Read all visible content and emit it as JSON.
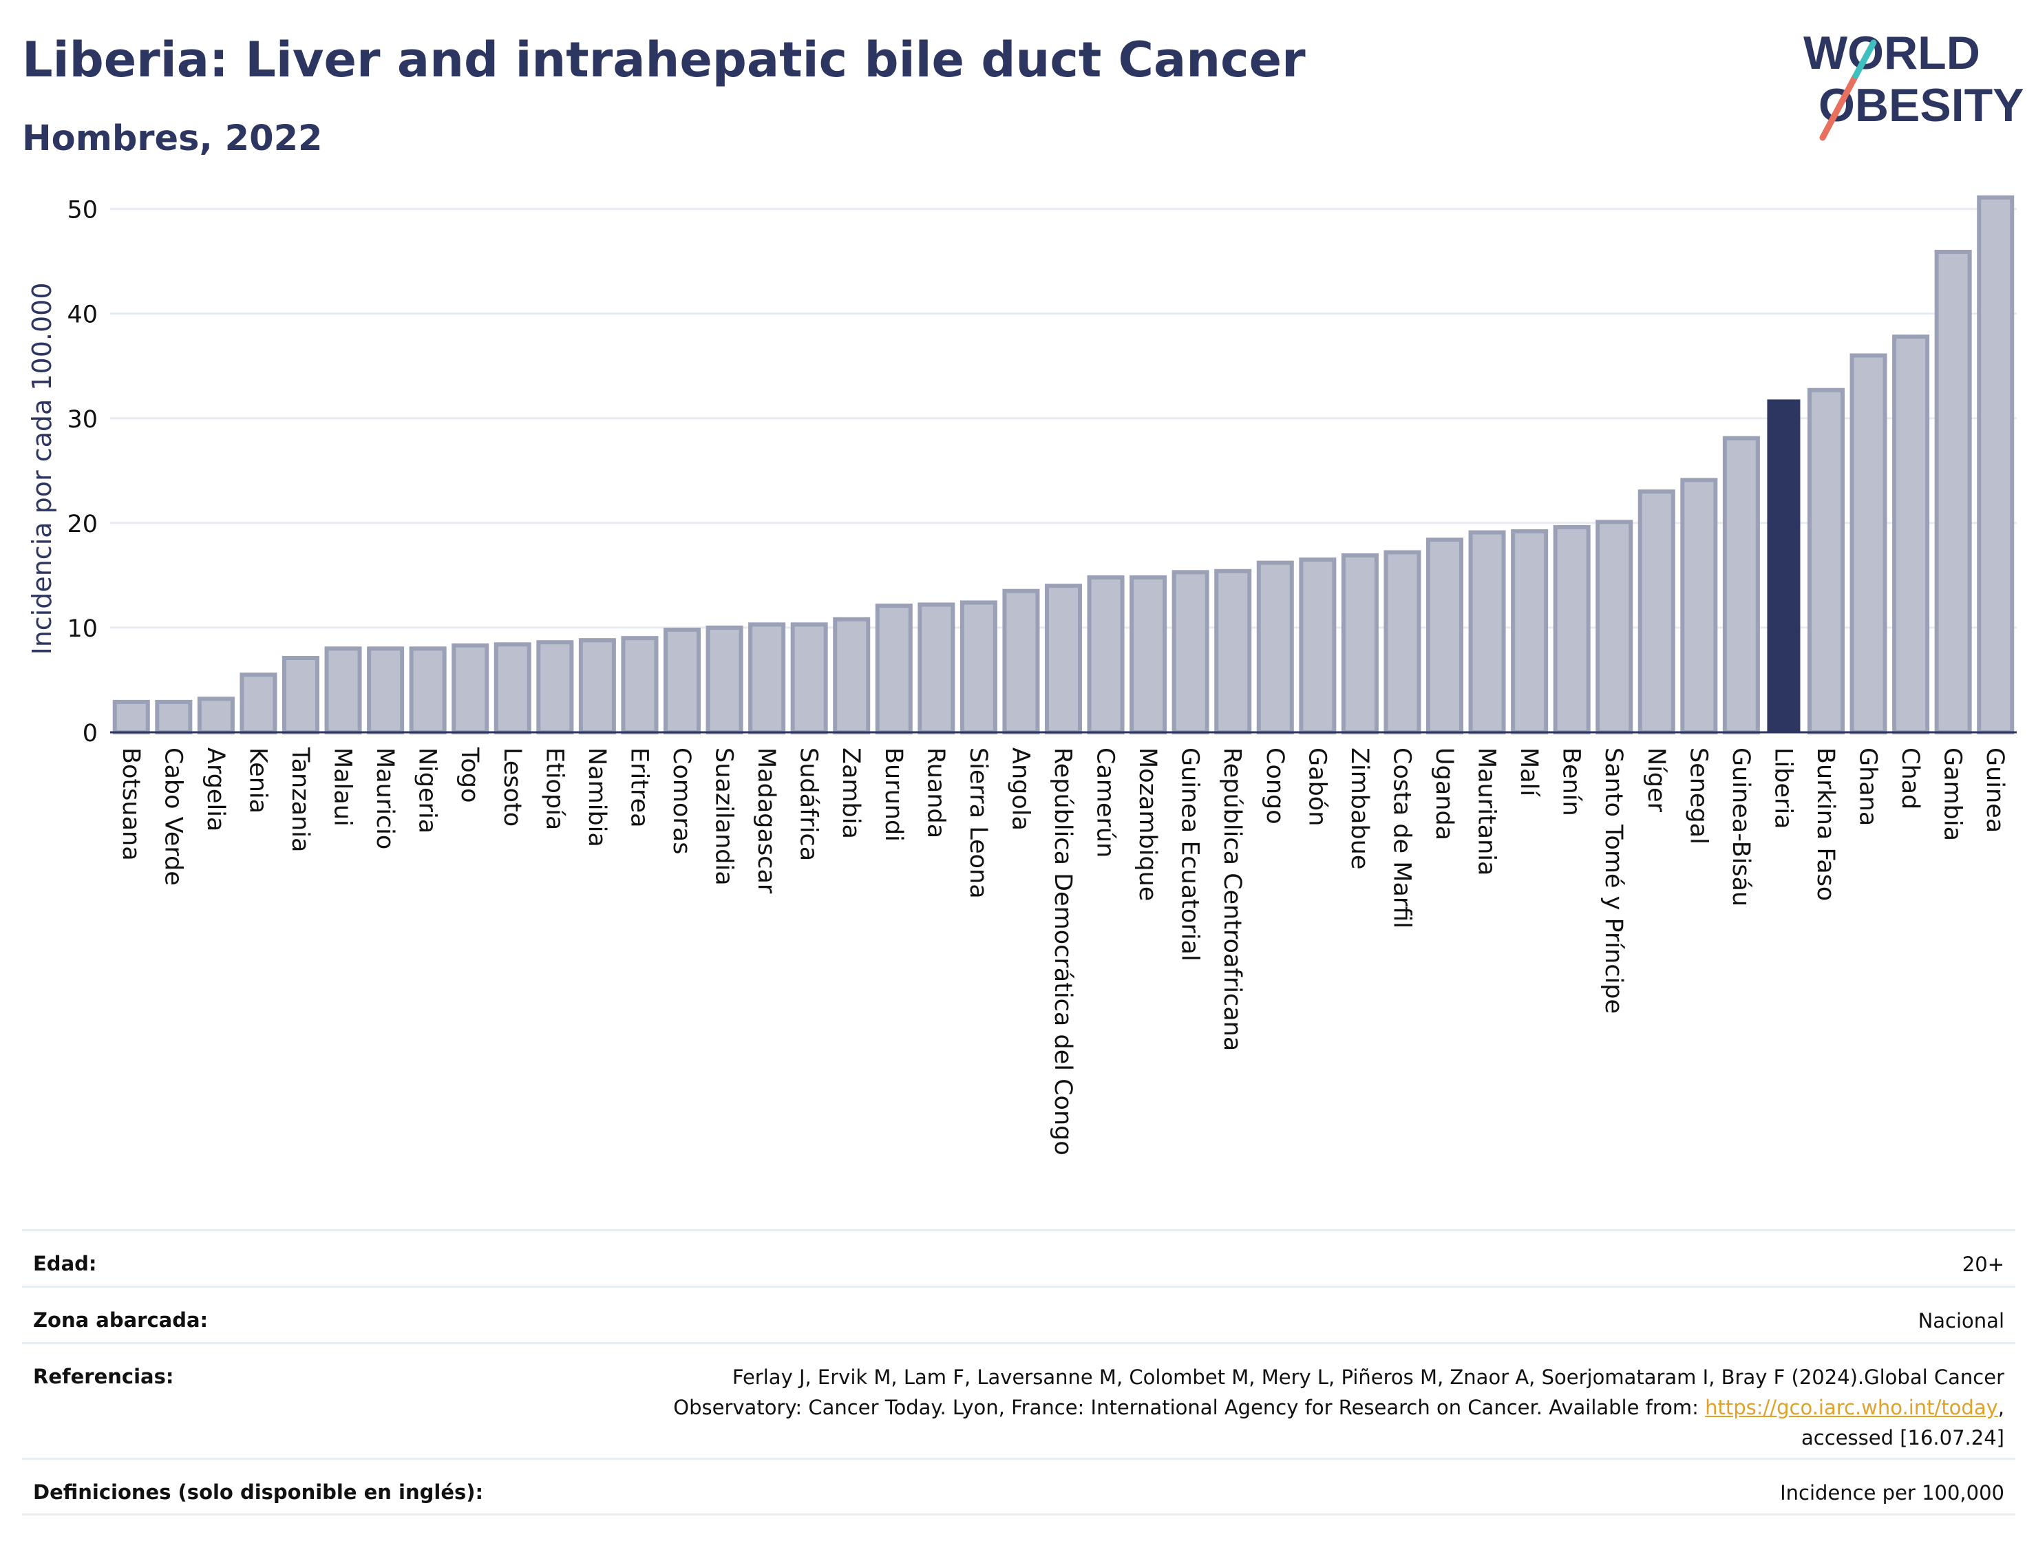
{
  "header": {
    "title": "Liberia: Liver and intrahepatic bile duct Cancer",
    "subtitle": "Hombres, 2022",
    "logo_line1": "WORLD",
    "logo_line2": "OBESITY"
  },
  "colors": {
    "bar": "#bcc0ce",
    "bar_border": "#9aa0b6",
    "highlight": "#2d3561",
    "text": "#2d3561",
    "grid": "#e6ebf2",
    "logo_teal": "#3fbfbf",
    "logo_coral": "#e8705e"
  },
  "chart_data": {
    "type": "bar",
    "ylabel": "Incidencia por cada 100.000",
    "ylim": [
      0,
      53
    ],
    "yticks": [
      0,
      10,
      20,
      30,
      40,
      50
    ],
    "grid": true,
    "highlight": "Liberia",
    "categories": [
      "Botsuana",
      "Cabo Verde",
      "Argelia",
      "Kenia",
      "Tanzania",
      "Malaui",
      "Mauricio",
      "Nigeria",
      "Togo",
      "Lesoto",
      "Etiopía",
      "Namibia",
      "Eritrea",
      "Comoras",
      "Suazilandia",
      "Madagascar",
      "Sudáfrica",
      "Zambia",
      "Burundi",
      "Ruanda",
      "Sierra Leona",
      "Angola",
      "República Democrática del Congo",
      "Camerún",
      "Mozambique",
      "Guinea Ecuatorial",
      "República Centroafricana",
      "Congo",
      "Gabón",
      "Zimbabue",
      "Costa de Marfil",
      "Uganda",
      "Mauritania",
      "Malí",
      "Benín",
      "Santo Tomé y Príncipe",
      "Níger",
      "Senegal",
      "Guinea-Bisáu",
      "Liberia",
      "Burkina Faso",
      "Ghana",
      "Chad",
      "Gambia",
      "Guinea"
    ],
    "values": [
      2.9,
      2.9,
      3.2,
      5.5,
      7.1,
      8.0,
      8.0,
      8.0,
      8.3,
      8.4,
      8.6,
      8.8,
      9.0,
      9.8,
      10.0,
      10.3,
      10.3,
      10.8,
      12.1,
      12.2,
      12.4,
      13.5,
      14.0,
      14.8,
      14.8,
      15.3,
      15.4,
      16.2,
      16.5,
      16.9,
      17.2,
      18.4,
      19.1,
      19.2,
      19.6,
      20.1,
      23.0,
      24.1,
      28.1,
      31.8,
      32.7,
      36.0,
      37.8,
      45.9,
      51.1
    ]
  },
  "info": {
    "age_label": "Edad:",
    "age_value": "20+",
    "area_label": "Zona abarcada:",
    "area_value": "Nacional",
    "refs_label": "Referencias:",
    "refs_line1": "Ferlay J, Ervik M, Lam F, Laversanne M, Colombet M, Mery L, Piñeros M, Znaor A, Soerjomataram I, Bray F (2024).Global Cancer",
    "refs_line2_pre": "Observatory: Cancer Today. Lyon, France: International Agency for Research on Cancer. Available from: ",
    "refs_link": "https://gco.iarc.who.int/today",
    "refs_line2_post": ",",
    "refs_line3": "accessed [16.07.24]",
    "defs_label": "Definiciones (solo disponible en inglés):",
    "defs_value": "Incidence per 100,000"
  }
}
